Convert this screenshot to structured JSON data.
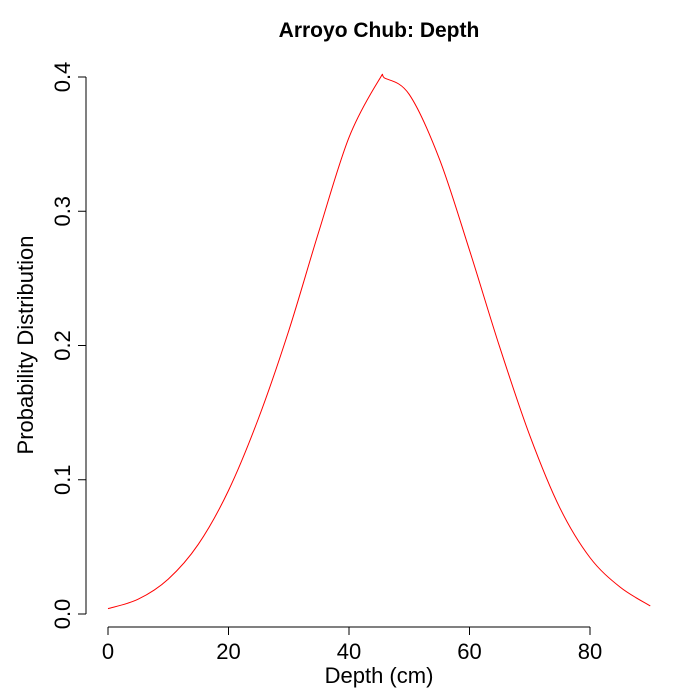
{
  "chart_data": {
    "type": "line",
    "title": "Arroyo Chub: Depth",
    "xlabel": "Depth (cm)",
    "ylabel": "Probability Distribution",
    "xlim": [
      0,
      90
    ],
    "ylim": [
      0,
      0.4
    ],
    "x_ticks": [
      0,
      20,
      40,
      60,
      80
    ],
    "x_tick_labels": [
      "0",
      "20",
      "40",
      "60",
      "80"
    ],
    "y_ticks": [
      0,
      0.1,
      0.2,
      0.3,
      0.4
    ],
    "y_tick_labels": [
      "0.0",
      "0.1",
      "0.2",
      "0.3",
      "0.4"
    ],
    "grid": false,
    "series": [
      {
        "color": "#ff0000",
        "x": [
          0,
          5,
          10,
          15,
          20,
          25,
          30,
          35,
          40,
          45,
          46,
          50,
          55,
          60,
          65,
          70,
          75,
          80,
          85,
          90
        ],
        "y": [
          0.004,
          0.011,
          0.026,
          0.052,
          0.092,
          0.146,
          0.211,
          0.285,
          0.355,
          0.398,
          0.399,
          0.387,
          0.339,
          0.271,
          0.199,
          0.133,
          0.079,
          0.042,
          0.02,
          0.006
        ]
      }
    ]
  }
}
